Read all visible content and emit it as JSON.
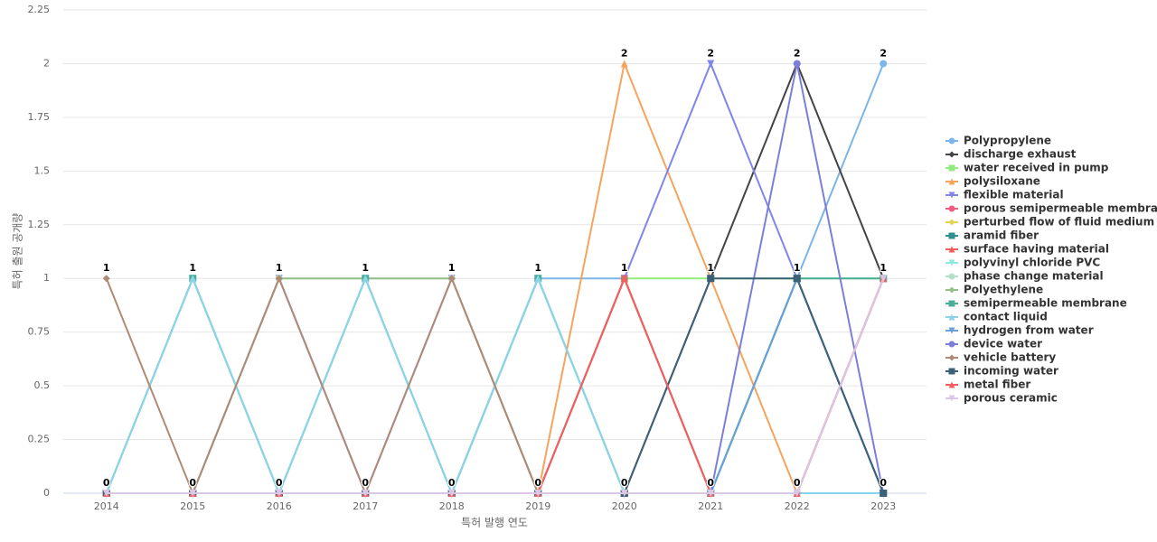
{
  "chart_data": {
    "type": "line",
    "x_label": "특허 발행 연도",
    "y_label": "특허 출원 공개량",
    "categories": [
      "2014",
      "2015",
      "2016",
      "2017",
      "2018",
      "2019",
      "2020",
      "2021",
      "2022",
      "2023"
    ],
    "ylim": [
      0,
      2.25
    ],
    "yticks": [
      0,
      0.25,
      0.5,
      0.75,
      1,
      1.25,
      1.5,
      1.75,
      2,
      2.25
    ],
    "grid": true,
    "legend": "right",
    "series": [
      {
        "name": "Polypropylene",
        "color": "#7cb5ec",
        "symbol": "circle",
        "values": [
          0,
          0,
          0,
          0,
          0,
          1,
          1,
          0,
          1,
          2
        ]
      },
      {
        "name": "discharge exhaust",
        "color": "#434348",
        "symbol": "diamond",
        "values": [
          0,
          0,
          0,
          0,
          0,
          0,
          0,
          1,
          2,
          1
        ]
      },
      {
        "name": "water received in pump",
        "color": "#90ed7d",
        "symbol": "square",
        "values": [
          0,
          0,
          0,
          0,
          0,
          0,
          1,
          1,
          1,
          1
        ]
      },
      {
        "name": "polysiloxane",
        "color": "#f7a35c",
        "symbol": "triangle",
        "values": [
          0,
          0,
          0,
          0,
          0,
          0,
          2,
          1,
          0,
          0
        ]
      },
      {
        "name": "flexible material",
        "color": "#8085e9",
        "symbol": "triangle-down",
        "values": [
          0,
          0,
          1,
          0,
          1,
          0,
          1,
          2,
          1,
          0
        ]
      },
      {
        "name": "porous semipermeable membrane",
        "color": "#f15c80",
        "symbol": "circle",
        "values": [
          0,
          0,
          0,
          0,
          0,
          0,
          1,
          0,
          0,
          1
        ]
      },
      {
        "name": "perturbed flow of fluid medium",
        "color": "#e4d354",
        "symbol": "diamond",
        "values": [
          0,
          0,
          0,
          0,
          0,
          0,
          0,
          0,
          0,
          1
        ]
      },
      {
        "name": "aramid fiber",
        "color": "#2b908f",
        "symbol": "square",
        "values": [
          0,
          0,
          0,
          0,
          0,
          0,
          0,
          0,
          1,
          0
        ]
      },
      {
        "name": "surface having material",
        "color": "#f45b5b",
        "symbol": "triangle",
        "values": [
          0,
          0,
          0,
          0,
          0,
          0,
          1,
          0,
          0,
          1
        ]
      },
      {
        "name": "polyvinyl chloride PVC",
        "color": "#91e8e1",
        "symbol": "triangle-down",
        "values": [
          0,
          1,
          0,
          1,
          0,
          1,
          0,
          0,
          0,
          0
        ]
      },
      {
        "name": "phase change material",
        "color": "#b5dfc8",
        "symbol": "circle",
        "values": [
          0,
          0,
          1,
          1,
          1,
          0,
          0,
          0,
          0,
          1
        ]
      },
      {
        "name": "Polyethylene",
        "color": "#96c08a",
        "symbol": "diamond",
        "values": [
          0,
          0,
          1,
          1,
          1,
          0,
          0,
          0,
          0,
          0
        ]
      },
      {
        "name": "semipermeable membrane",
        "color": "#4cae9a",
        "symbol": "square",
        "values": [
          0,
          1,
          0,
          1,
          0,
          1,
          0,
          0,
          1,
          1
        ]
      },
      {
        "name": "contact liquid",
        "color": "#8ad3ea",
        "symbol": "triangle",
        "values": [
          0,
          1,
          0,
          1,
          0,
          1,
          0,
          0,
          0,
          0
        ]
      },
      {
        "name": "hydrogen from water",
        "color": "#6a9fd8",
        "symbol": "triangle-down",
        "values": [
          0,
          0,
          0,
          0,
          0,
          0,
          0,
          0,
          1,
          0
        ]
      },
      {
        "name": "device water",
        "color": "#7b7fd9",
        "symbol": "circle",
        "values": [
          0,
          0,
          0,
          0,
          0,
          0,
          0,
          0,
          2,
          0
        ]
      },
      {
        "name": "vehicle battery",
        "color": "#b08a74",
        "symbol": "diamond",
        "values": [
          1,
          0,
          1,
          0,
          1,
          0,
          1,
          0,
          0,
          1
        ]
      },
      {
        "name": "incoming water",
        "color": "#3d6079",
        "symbol": "square",
        "values": [
          0,
          0,
          0,
          0,
          0,
          0,
          0,
          1,
          1,
          0
        ]
      },
      {
        "name": "metal fiber",
        "color": "#f06060",
        "symbol": "triangle",
        "values": [
          0,
          0,
          0,
          0,
          0,
          0,
          1,
          0,
          0,
          1
        ]
      },
      {
        "name": "porous ceramic",
        "color": "#dcc6e6",
        "symbol": "triangle-down",
        "values": [
          0,
          0,
          0,
          0,
          0,
          0,
          0,
          0,
          0,
          1
        ]
      }
    ]
  }
}
